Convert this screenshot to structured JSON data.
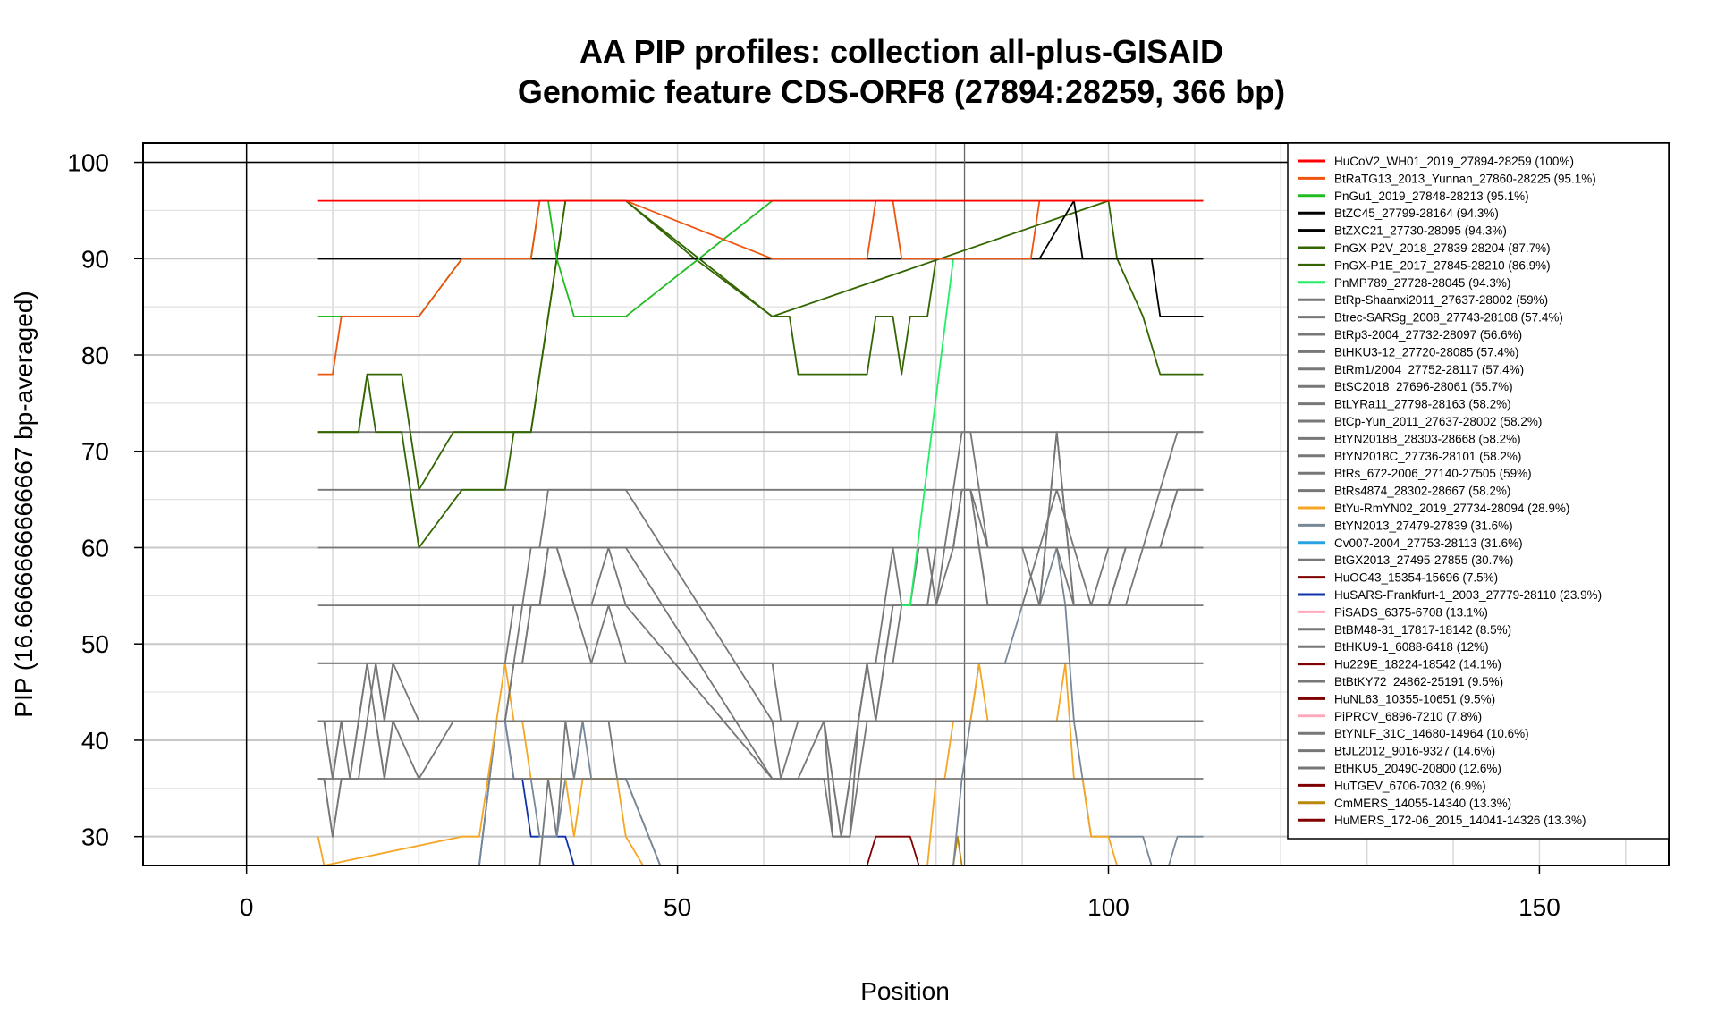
{
  "chart_data": {
    "type": "line",
    "title": "AA PIP profiles: collection all-plus-GISAID",
    "subtitle": "Genomic feature CDS-ORF8 (27894:28259, 366 bp)",
    "xlabel": "Position",
    "ylabel": "PIP (16.6666666666667 bp-averaged)",
    "xlim": [
      -12,
      165
    ],
    "ylim": [
      27,
      102
    ],
    "x_ticks": [
      0,
      50,
      100,
      150
    ],
    "y_ticks": [
      30,
      40,
      50,
      60,
      70,
      80,
      90,
      100
    ],
    "grid": true,
    "legend_position": "top-right",
    "reference_lines": {
      "h": [
        100
      ],
      "v": [
        0,
        83.3
      ]
    },
    "series": [
      {
        "name": "HuCoV2_WH01_2019_27894-28259 (100%)",
        "color": "#ff0000",
        "x": [
          8.3,
          111.0
        ],
        "y": [
          96,
          96
        ]
      },
      {
        "name": "BtRaTG13_2013_Yunnan_27860-28225 (95.1%)",
        "color": "#ee5511",
        "x": [
          8.3,
          10,
          11,
          20,
          25,
          33,
          34,
          35,
          37,
          44,
          61,
          72,
          73,
          75,
          76,
          91,
          92,
          111
        ],
        "y": [
          78,
          78,
          84,
          84,
          90,
          90,
          96,
          96,
          96,
          96,
          90,
          90,
          96,
          96,
          90,
          90,
          96,
          96
        ]
      },
      {
        "name": "PnGu1_2019_27848-28213 (95.1%)",
        "color": "#22bb22",
        "x": [
          8.3,
          11,
          20,
          25,
          33,
          34,
          35,
          36,
          38,
          44,
          61,
          111
        ],
        "y": [
          84,
          84,
          84,
          90,
          90,
          96,
          96,
          90,
          84,
          84,
          96,
          96
        ]
      },
      {
        "name": "BtZC45_27799-28164 (94.3%)",
        "color": "#000000",
        "x": [
          8.3,
          92,
          96,
          97,
          105,
          106,
          111
        ],
        "y": [
          90,
          90,
          96,
          90,
          90,
          84,
          84
        ]
      },
      {
        "name": "BtZXC21_27730-28095 (94.3%)",
        "color": "#000000",
        "x": [
          8.3,
          111
        ],
        "y": [
          90,
          90
        ]
      },
      {
        "name": "PnGX-P2V_2018_27839-28204 (87.7%)",
        "color": "#336600",
        "x": [
          8.3,
          13,
          14,
          18,
          20,
          24,
          30,
          31,
          33,
          36,
          37,
          44,
          61,
          63,
          64,
          72,
          73,
          75,
          76,
          77,
          78,
          79,
          80,
          111
        ],
        "y": [
          72,
          72,
          78,
          78,
          66,
          72,
          72,
          72,
          72,
          90,
          96,
          96,
          84,
          84,
          78,
          78,
          84,
          84,
          78,
          84,
          84,
          84,
          90,
          90
        ]
      },
      {
        "name": "PnGX-P1E_2017_27845-28210 (86.9%)",
        "color": "#336600",
        "x": [
          8.3,
          13,
          14,
          15,
          18,
          20,
          25,
          30,
          31,
          33,
          36,
          37,
          44,
          52,
          61,
          100,
          101,
          104,
          106,
          111
        ],
        "y": [
          72,
          72,
          78,
          72,
          72,
          60,
          66,
          66,
          72,
          72,
          90,
          96,
          96,
          90,
          84,
          96,
          90,
          84,
          78,
          78
        ]
      },
      {
        "name": "PnMP789_27728-28045 (94.3%)",
        "color": "#22ee66",
        "x": [
          76,
          77,
          82
        ],
        "y": [
          54,
          54,
          90
        ]
      },
      {
        "name": "BtRp-Shaanxi2011_27637-28002 (59%)",
        "color": "#777777",
        "x": [
          8.3,
          9,
          10,
          11,
          12,
          13,
          14,
          15,
          16,
          17,
          20,
          24,
          28,
          30,
          31,
          32,
          33,
          34,
          35,
          36,
          38,
          40,
          42,
          44,
          61,
          62,
          64,
          67,
          68,
          69,
          70,
          71,
          72,
          73,
          74,
          75,
          76,
          77,
          78,
          79,
          80,
          82,
          83,
          84,
          86,
          88,
          90,
          92,
          94,
          96,
          98,
          100,
          102,
          104,
          106,
          108,
          111
        ],
        "y": [
          42,
          42,
          36,
          42,
          36,
          42,
          48,
          48,
          42,
          48,
          48,
          48,
          48,
          48,
          54,
          54,
          60,
          60,
          66,
          66,
          66,
          66,
          66,
          66,
          42,
          36,
          42,
          42,
          30,
          30,
          36,
          42,
          48,
          48,
          54,
          60,
          54,
          54,
          60,
          60,
          54,
          66,
          72,
          72,
          60,
          60,
          60,
          54,
          72,
          54,
          54,
          60,
          60,
          60,
          66,
          72,
          72
        ]
      },
      {
        "name": "Btrec-SARSg_2008_27743-28108 (57.4%)",
        "color": "#777777",
        "x": [
          8.3,
          9,
          10,
          11,
          12,
          13,
          14,
          15,
          16,
          17,
          20,
          24,
          28,
          30,
          31,
          32,
          33,
          34,
          35,
          36,
          38,
          40,
          42,
          44,
          61,
          62,
          64,
          67,
          68,
          69,
          70,
          71,
          72,
          73,
          74,
          75,
          76,
          77,
          78,
          79,
          80,
          82,
          83,
          84,
          86,
          88,
          90,
          92,
          94,
          96,
          98,
          100,
          102,
          104,
          106,
          108,
          111
        ],
        "y": [
          36,
          36,
          30,
          36,
          36,
          42,
          42,
          48,
          42,
          48,
          42,
          42,
          42,
          42,
          48,
          54,
          54,
          54,
          60,
          60,
          54,
          54,
          60,
          54,
          36,
          36,
          36,
          42,
          36,
          30,
          30,
          42,
          48,
          42,
          48,
          48,
          54,
          54,
          54,
          54,
          54,
          60,
          66,
          66,
          54,
          54,
          54,
          54,
          72,
          54,
          54,
          54,
          60,
          60,
          60,
          66,
          66
        ]
      },
      {
        "name": "BtRp3-2004_27732-28097 (56.6%)",
        "color": "#777777",
        "x": [
          8.3,
          9,
          10,
          11,
          12,
          13,
          14,
          15,
          16,
          17,
          20,
          24,
          28,
          30,
          31,
          32,
          33,
          34,
          35,
          36,
          38,
          40,
          42,
          44,
          61,
          62,
          64,
          67,
          68,
          69,
          70,
          71,
          72,
          73,
          74,
          75,
          76,
          77,
          78,
          79,
          80,
          82,
          83,
          84,
          86,
          88,
          90,
          92,
          94,
          96,
          98,
          100,
          102,
          104,
          106,
          108,
          111
        ],
        "y": [
          36,
          36,
          30,
          36,
          36,
          36,
          42,
          42,
          36,
          42,
          42,
          42,
          42,
          42,
          48,
          48,
          54,
          54,
          60,
          60,
          54,
          48,
          54,
          48,
          48,
          42,
          42,
          42,
          36,
          30,
          36,
          42,
          48,
          48,
          48,
          54,
          54,
          54,
          54,
          54,
          60,
          60,
          66,
          66,
          54,
          54,
          54,
          60,
          60,
          54,
          54,
          54,
          54,
          60,
          60,
          60,
          60
        ]
      },
      {
        "name": "BtHKU3-12_27720-28085 (57.4%)",
        "color": "#777777",
        "x": [
          8.3,
          9,
          10,
          11,
          12,
          13,
          14,
          15,
          16,
          17,
          20,
          24,
          28,
          30,
          31,
          32,
          33,
          34,
          35,
          36,
          38,
          40,
          42,
          44,
          61,
          62,
          64,
          67,
          68,
          69,
          70,
          71,
          72,
          73,
          74,
          75,
          76,
          77,
          78,
          79,
          80,
          82,
          83,
          84,
          86,
          88,
          90,
          92,
          94,
          96,
          98,
          100,
          102,
          104,
          106,
          108,
          111
        ],
        "y": [
          42,
          42,
          36,
          42,
          42,
          42,
          48,
          42,
          36,
          42,
          36,
          42,
          42,
          42,
          48,
          48,
          54,
          54,
          60,
          60,
          60,
          60,
          60,
          60,
          36,
          36,
          36,
          36,
          30,
          30,
          30,
          36,
          42,
          42,
          48,
          54,
          54,
          54,
          54,
          54,
          60,
          60,
          66,
          66,
          60,
          60,
          60,
          60,
          66,
          60,
          54,
          54,
          60,
          60,
          60,
          66,
          66
        ]
      },
      {
        "name": "BtRm1/2004_27752-28117 (57.4%)",
        "color": "#777777",
        "x": [
          8.3,
          111
        ],
        "y": [
          42,
          42
        ]
      },
      {
        "name": "BtSC2018_27696-28061 (55.7%)",
        "color": "#777777",
        "x": [
          8.3,
          111
        ],
        "y": [
          36,
          36
        ]
      },
      {
        "name": "BtLYRa11_27798-28163 (58.2%)",
        "color": "#777777",
        "x": [
          8.3,
          111
        ],
        "y": [
          48,
          48
        ]
      },
      {
        "name": "BtCp-Yun_2011_27637-28002 (58.2%)",
        "color": "#777777",
        "x": [
          8.3,
          111
        ],
        "y": [
          54,
          54
        ]
      },
      {
        "name": "BtYN2018B_28303-28668 (58.2%)",
        "color": "#777777",
        "x": [
          8.3,
          111
        ],
        "y": [
          60,
          60
        ]
      },
      {
        "name": "BtYN2018C_27736-28101 (58.2%)",
        "color": "#777777",
        "x": [
          8.3,
          111
        ],
        "y": [
          66,
          66
        ]
      },
      {
        "name": "BtRs_672-2006_27140-27505 (59%)",
        "color": "#777777",
        "x": [
          8.3,
          111
        ],
        "y": [
          72,
          72
        ]
      },
      {
        "name": "BtRs4874_28302-28667 (58.2%)",
        "color": "#777777",
        "x": [
          8.3,
          111
        ],
        "y": [
          48,
          48
        ]
      },
      {
        "name": "BtYu-RmYN02_2019_27734-28094 (28.9%)",
        "color": "#f5a623",
        "x": [
          8.3,
          9,
          25,
          27,
          30,
          31,
          32,
          33,
          35,
          37,
          38,
          39,
          43,
          44,
          46,
          79,
          80,
          81,
          82,
          84,
          85,
          86,
          94,
          95,
          96,
          97,
          98,
          100,
          101
        ],
        "y": [
          30,
          27,
          30,
          30,
          48,
          42,
          42,
          36,
          36,
          36,
          30,
          36,
          36,
          30,
          27,
          27,
          36,
          36,
          42,
          42,
          48,
          42,
          42,
          48,
          36,
          36,
          30,
          30,
          27
        ]
      },
      {
        "name": "BtYN2013_27479-27839 (31.6%)",
        "color": "#778899",
        "x": [
          27,
          29,
          30,
          31,
          33,
          34,
          35,
          36,
          37,
          38,
          39,
          40,
          42,
          43,
          44,
          48,
          82,
          83,
          84,
          85,
          86,
          88,
          90,
          92,
          94,
          95,
          96,
          98,
          104,
          105,
          107,
          108,
          109,
          111
        ],
        "y": [
          27,
          42,
          42,
          36,
          36,
          30,
          30,
          30,
          36,
          36,
          42,
          36,
          36,
          36,
          36,
          27,
          27,
          36,
          42,
          48,
          48,
          48,
          54,
          54,
          60,
          54,
          42,
          30,
          30,
          27,
          27,
          30,
          30,
          30
        ]
      },
      {
        "name": "Cv007-2004_27753-28113 (31.6%)",
        "color": "#29a3e0",
        "x": [
          0,
          0.1
        ],
        "y": [
          27,
          27
        ]
      },
      {
        "name": "BtGX2013_27495-27855 (30.7%)",
        "color": "#777777",
        "x": [
          34,
          35,
          36,
          37,
          38,
          39,
          40,
          42,
          43,
          44,
          48
        ],
        "y": [
          27,
          36,
          30,
          42,
          36,
          42,
          42,
          42,
          36,
          36,
          27
        ]
      },
      {
        "name": "HuOC43_15354-15696 (7.5%)",
        "color": "#800000",
        "x": [
          72,
          73,
          77,
          78
        ],
        "y": [
          27,
          30,
          30,
          27
        ]
      },
      {
        "name": "HuSARS-Frankfurt-1_2003_27779-28110 (23.9%)",
        "color": "#1133aa",
        "x": [
          27,
          29,
          30,
          31,
          32,
          33,
          35,
          36,
          37,
          38
        ],
        "y": [
          27,
          42,
          42,
          36,
          36,
          30,
          30,
          30,
          30,
          27
        ]
      },
      {
        "name": "PiSADS_6375-6708 (13.1%)",
        "color": "#ffaabb",
        "x": [
          0,
          0.1
        ],
        "y": [
          27,
          27
        ]
      },
      {
        "name": "BtBM48-31_17817-18142 (8.5%)",
        "color": "#777777",
        "x": [
          0,
          0.1
        ],
        "y": [
          27,
          27
        ]
      },
      {
        "name": "BtHKU9-1_6088-6418 (12%)",
        "color": "#777777",
        "x": [
          0,
          0.1
        ],
        "y": [
          27,
          27
        ]
      },
      {
        "name": "Hu229E_18224-18542 (14.1%)",
        "color": "#800000",
        "x": [
          0,
          0.1
        ],
        "y": [
          27,
          27
        ]
      },
      {
        "name": "BtBtKY72_24862-25191 (9.5%)",
        "color": "#777777",
        "x": [
          0,
          0.1
        ],
        "y": [
          27,
          27
        ]
      },
      {
        "name": "HuNL63_10355-10651 (9.5%)",
        "color": "#800000",
        "x": [
          0,
          0.1
        ],
        "y": [
          27,
          27
        ]
      },
      {
        "name": "PiPRCV_6896-7210 (7.8%)",
        "color": "#ffaabb",
        "x": [
          0,
          0.1
        ],
        "y": [
          27,
          27
        ]
      },
      {
        "name": "BtYNLF_31C_14680-14964 (10.6%)",
        "color": "#777777",
        "x": [
          0,
          0.1
        ],
        "y": [
          27,
          27
        ]
      },
      {
        "name": "BtJL2012_9016-9327 (14.6%)",
        "color": "#777777",
        "x": [
          0,
          0.1
        ],
        "y": [
          27,
          27
        ]
      },
      {
        "name": "BtHKU5_20490-20800 (12.6%)",
        "color": "#777777",
        "x": [
          0,
          0.1
        ],
        "y": [
          27,
          27
        ]
      },
      {
        "name": "HuTGEV_6706-7032 (6.9%)",
        "color": "#800000",
        "x": [
          0,
          0.1
        ],
        "y": [
          27,
          27
        ]
      },
      {
        "name": "CmMERS_14055-14340 (13.3%)",
        "color": "#b8860b",
        "x": [
          82,
          82.5,
          83
        ],
        "y": [
          27,
          30,
          27
        ]
      },
      {
        "name": "HuMERS_172-06_2015_14041-14326 (13.3%)",
        "color": "#800000",
        "x": [
          0,
          0.1
        ],
        "y": [
          27,
          27
        ]
      }
    ]
  }
}
